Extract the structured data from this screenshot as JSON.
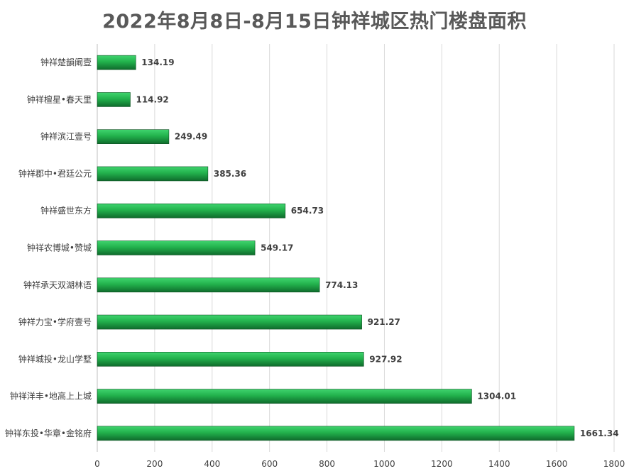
{
  "chart_data": {
    "type": "bar",
    "orientation": "horizontal",
    "title": "2022年8月8日-8月15日钟祥城区热门楼盘面积",
    "categories": [
      "钟祥楚韻阚壹",
      "钟祥檀星•春天里",
      "钟祥滨江壹号",
      "钟祥郡中•君廷公元",
      "钟祥盛世东方",
      "钟祥农博城•赞城",
      "钟祥承天双湖林语",
      "钟祥力宝•学府壹号",
      "钟祥城投•龙山学墅",
      "钟祥洋丰•地高上上城",
      "钟祥东投•华章•金铭府"
    ],
    "values": [
      134.19,
      114.92,
      249.49,
      385.36,
      654.73,
      549.17,
      774.13,
      921.27,
      927.92,
      1304.01,
      1661.34
    ],
    "data_labels": [
      "134.19",
      "114.92",
      "249.49",
      "385.36",
      "654.73",
      "549.17",
      "774.13",
      "921.27",
      "927.92",
      "1304.01",
      "1661.34"
    ],
    "xlim": [
      0,
      1800
    ],
    "xticks": [
      0,
      200,
      400,
      600,
      800,
      1000,
      1200,
      1400,
      1600,
      1800
    ],
    "xtick_labels": [
      "0",
      "200",
      "400",
      "600",
      "800",
      "1000",
      "1200",
      "1400",
      "1600",
      "1800"
    ],
    "xlabel": "",
    "ylabel": "",
    "grid": "vertical",
    "legend": "none",
    "colors": {
      "bar_top": "#3fd46e",
      "bar_mid": "#22b14c",
      "bar_bottom": "#0f6b2c",
      "bar_edge": "#0b4f20",
      "grid": "#d9d9d9",
      "axis": "#bfbfbf",
      "text": "#404040",
      "title": "#595959"
    }
  }
}
